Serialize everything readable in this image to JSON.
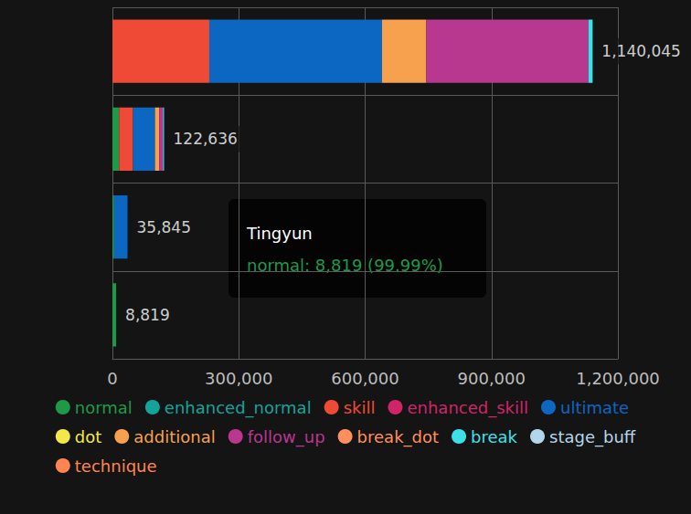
{
  "chart_data": {
    "type": "bar",
    "orientation": "horizontal",
    "stacked": true,
    "grid": true,
    "legend": "bottom",
    "tick_labels": "x",
    "categories": [
      null,
      null,
      null,
      null
    ],
    "xlim": [
      0,
      1200000
    ],
    "xticks": [
      0,
      300000,
      600000,
      900000,
      1200000
    ],
    "series": [
      {
        "name": "normal",
        "color": "#1d9a48",
        "values": [
          null,
          16000,
          4000,
          8819
        ]
      },
      {
        "name": "enhanced_normal",
        "color": "#14a39a",
        "values": [
          null,
          null,
          null,
          null
        ]
      },
      {
        "name": "skill",
        "color": "#ee4a36",
        "values": [
          230000,
          33000,
          null,
          null
        ]
      },
      {
        "name": "enhanced_skill",
        "color": "#cf2568",
        "values": [
          null,
          null,
          null,
          null
        ]
      },
      {
        "name": "ultimate",
        "color": "#0b67c2",
        "values": [
          410000,
          52000,
          31845,
          null
        ]
      },
      {
        "name": "dot",
        "color": "#f3e84a",
        "values": [
          null,
          null,
          null,
          null
        ]
      },
      {
        "name": "additional",
        "color": "#f7a04d",
        "values": [
          105000,
          10000,
          null,
          null
        ]
      },
      {
        "name": "follow_up",
        "color": "#b8378f",
        "values": [
          385000,
          9000,
          null,
          null
        ]
      },
      {
        "name": "break_dot",
        "color": "#ff8f5c",
        "values": [
          null,
          null,
          null,
          null
        ]
      },
      {
        "name": "break",
        "color": "#3ee0e8",
        "values": [
          10045,
          2636,
          null,
          null
        ]
      },
      {
        "name": "stage_buff",
        "color": "#b4d6ea",
        "values": [
          null,
          null,
          null,
          null
        ]
      },
      {
        "name": "technique",
        "color": "#ff844f",
        "values": [
          null,
          null,
          null,
          null
        ]
      }
    ],
    "totals": [
      1140045,
      122636,
      35845,
      8819
    ],
    "total_labels": [
      "1,140,045",
      "122,636",
      "35,845",
      "8,819"
    ],
    "tooltip": {
      "title": "Tingyun",
      "text": "normal: 8,819 (99.99%)"
    }
  }
}
